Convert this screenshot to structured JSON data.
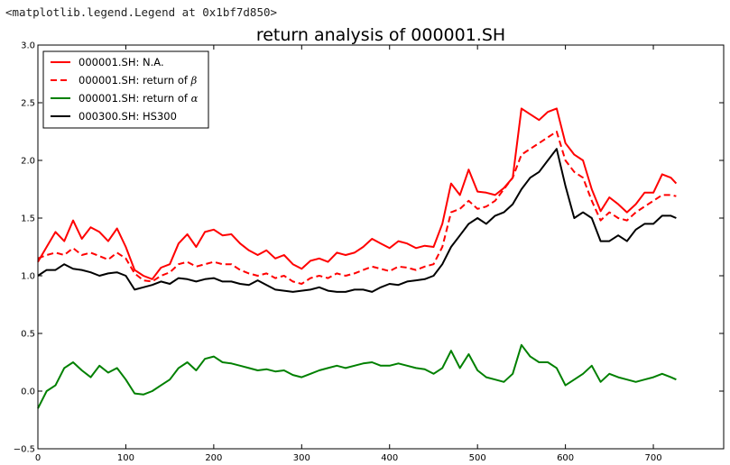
{
  "notebook": {
    "output_repr": "<matplotlib.legend.Legend at 0x1bf7d850>"
  },
  "chart_data": {
    "type": "line",
    "title": "return analysis of 000001.SH",
    "xlabel": "",
    "ylabel": "",
    "xlim": [
      0,
      780
    ],
    "ylim": [
      -0.5,
      3.0
    ],
    "xticks": [
      0,
      100,
      200,
      300,
      400,
      500,
      600,
      700
    ],
    "yticks": [
      -0.5,
      0.0,
      0.5,
      1.0,
      1.5,
      2.0,
      2.5,
      3.0
    ],
    "xtick_labels": [
      "0",
      "100",
      "200",
      "300",
      "400",
      "500",
      "600",
      "700"
    ],
    "ytick_labels": [
      "−0.5",
      "0.0",
      "0.5",
      "1.0",
      "1.5",
      "2.0",
      "2.5",
      "3.0"
    ],
    "grid": false,
    "legend_position": "top-left",
    "x": [
      0,
      10,
      20,
      30,
      40,
      50,
      60,
      70,
      80,
      90,
      100,
      110,
      120,
      130,
      140,
      150,
      160,
      170,
      180,
      190,
      200,
      210,
      220,
      230,
      240,
      250,
      260,
      270,
      280,
      290,
      300,
      310,
      320,
      330,
      340,
      350,
      360,
      370,
      380,
      390,
      400,
      410,
      420,
      430,
      440,
      450,
      460,
      470,
      480,
      490,
      500,
      510,
      520,
      530,
      540,
      550,
      560,
      570,
      580,
      590,
      600,
      610,
      620,
      630,
      640,
      650,
      660,
      670,
      680,
      690,
      700,
      710,
      720,
      726
    ],
    "series": [
      {
        "name": "000001.SH: N.A.",
        "label_plain": "000001.SH: N.A.",
        "label_symbol": "",
        "color": "#ff0000",
        "style": "solid",
        "values": [
          1.12,
          1.25,
          1.38,
          1.3,
          1.48,
          1.32,
          1.42,
          1.38,
          1.3,
          1.41,
          1.25,
          1.05,
          1.0,
          0.97,
          1.07,
          1.1,
          1.28,
          1.36,
          1.25,
          1.38,
          1.4,
          1.35,
          1.36,
          1.28,
          1.22,
          1.18,
          1.22,
          1.15,
          1.18,
          1.1,
          1.06,
          1.13,
          1.15,
          1.12,
          1.2,
          1.18,
          1.2,
          1.25,
          1.32,
          1.28,
          1.24,
          1.3,
          1.28,
          1.24,
          1.26,
          1.25,
          1.45,
          1.8,
          1.7,
          1.92,
          1.73,
          1.72,
          1.7,
          1.76,
          1.85,
          2.45,
          2.4,
          2.35,
          2.42,
          2.45,
          2.15,
          2.05,
          2.0,
          1.75,
          1.56,
          1.68,
          1.62,
          1.55,
          1.62,
          1.72,
          1.72,
          1.88,
          1.85,
          1.8
        ]
      },
      {
        "name": "000001.SH: return of β",
        "label_plain": "000001.SH: return of ",
        "label_symbol": "β",
        "color": "#ff0000",
        "style": "dashed",
        "values": [
          1.15,
          1.18,
          1.2,
          1.18,
          1.24,
          1.18,
          1.2,
          1.17,
          1.14,
          1.2,
          1.15,
          1.02,
          0.96,
          0.95,
          1.0,
          1.03,
          1.1,
          1.12,
          1.08,
          1.1,
          1.12,
          1.1,
          1.1,
          1.05,
          1.02,
          1.0,
          1.02,
          0.98,
          1.0,
          0.95,
          0.93,
          0.98,
          1.0,
          0.98,
          1.02,
          1.0,
          1.02,
          1.05,
          1.08,
          1.06,
          1.04,
          1.08,
          1.07,
          1.05,
          1.08,
          1.1,
          1.25,
          1.55,
          1.58,
          1.65,
          1.58,
          1.6,
          1.65,
          1.75,
          1.85,
          2.05,
          2.1,
          2.15,
          2.2,
          2.25,
          2.0,
          1.9,
          1.85,
          1.65,
          1.48,
          1.55,
          1.5,
          1.48,
          1.55,
          1.6,
          1.65,
          1.7,
          1.7,
          1.69
        ]
      },
      {
        "name": "000001.SH: return of α",
        "label_plain": "000001.SH: return of ",
        "label_symbol": "α",
        "color": "#008000",
        "style": "solid",
        "values": [
          -0.15,
          0.0,
          0.05,
          0.2,
          0.25,
          0.18,
          0.12,
          0.22,
          0.16,
          0.2,
          0.1,
          -0.02,
          -0.03,
          0.0,
          0.05,
          0.1,
          0.2,
          0.25,
          0.18,
          0.28,
          0.3,
          0.25,
          0.24,
          0.22,
          0.2,
          0.18,
          0.19,
          0.17,
          0.18,
          0.14,
          0.12,
          0.15,
          0.18,
          0.2,
          0.22,
          0.2,
          0.22,
          0.24,
          0.25,
          0.22,
          0.22,
          0.24,
          0.22,
          0.2,
          0.19,
          0.15,
          0.2,
          0.35,
          0.2,
          0.32,
          0.18,
          0.12,
          0.1,
          0.08,
          0.15,
          0.4,
          0.3,
          0.25,
          0.25,
          0.2,
          0.05,
          0.1,
          0.15,
          0.22,
          0.08,
          0.15,
          0.12,
          0.1,
          0.08,
          0.1,
          0.12,
          0.15,
          0.12,
          0.1
        ]
      },
      {
        "name": "000300.SH: HS300",
        "label_plain": "000300.SH: HS300",
        "label_symbol": "",
        "color": "#000000",
        "style": "solid",
        "values": [
          1.0,
          1.05,
          1.05,
          1.1,
          1.06,
          1.05,
          1.03,
          1.0,
          1.02,
          1.03,
          1.0,
          0.88,
          0.9,
          0.92,
          0.95,
          0.93,
          0.98,
          0.97,
          0.95,
          0.97,
          0.98,
          0.95,
          0.95,
          0.93,
          0.92,
          0.96,
          0.92,
          0.88,
          0.87,
          0.86,
          0.87,
          0.88,
          0.9,
          0.87,
          0.86,
          0.86,
          0.88,
          0.88,
          0.86,
          0.9,
          0.93,
          0.92,
          0.95,
          0.96,
          0.97,
          1.0,
          1.1,
          1.25,
          1.35,
          1.45,
          1.5,
          1.45,
          1.52,
          1.55,
          1.62,
          1.75,
          1.85,
          1.9,
          2.0,
          2.1,
          1.78,
          1.5,
          1.55,
          1.5,
          1.3,
          1.3,
          1.35,
          1.3,
          1.4,
          1.45,
          1.45,
          1.52,
          1.52,
          1.5
        ]
      }
    ]
  }
}
